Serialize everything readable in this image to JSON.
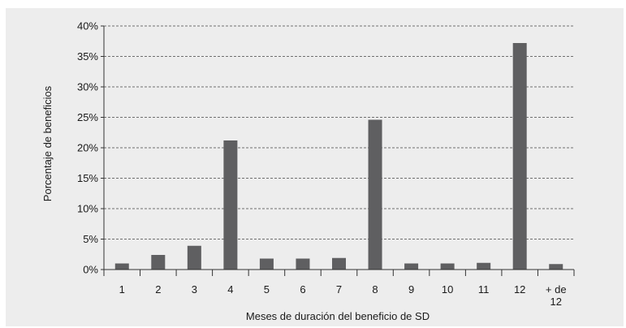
{
  "chart_data": {
    "type": "bar",
    "title": "",
    "xlabel": "Meses de duración del beneficio de SD",
    "ylabel": "Porcentaje de beneficios",
    "ylim": [
      0,
      40
    ],
    "yticks": [
      "0%",
      "5%",
      "10%",
      "15%",
      "20%",
      "25%",
      "30%",
      "35%",
      "40%"
    ],
    "ytick_values": [
      0,
      5,
      10,
      15,
      20,
      25,
      30,
      35,
      40
    ],
    "categories": [
      "1",
      "2",
      "3",
      "4",
      "5",
      "6",
      "7",
      "8",
      "9",
      "10",
      "11",
      "12",
      "+ de 12"
    ],
    "values": [
      1.0,
      2.4,
      3.9,
      21.2,
      1.8,
      1.8,
      1.9,
      24.6,
      1.0,
      1.0,
      1.1,
      37.2,
      0.9
    ],
    "grid": "horizontal-dashed",
    "bar_color": "#5f5f61",
    "background_color": "#ededed"
  }
}
